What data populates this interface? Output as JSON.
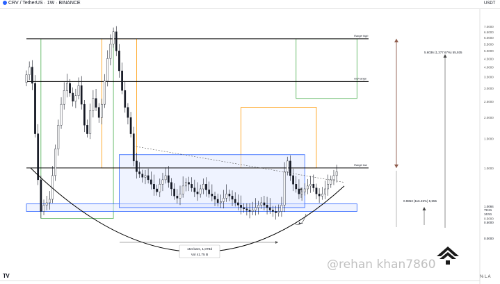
{
  "header": {
    "symbol_text": "CRV / TetherUS · 1W · BINANCE",
    "currency": "USDT"
  },
  "footer": {
    "tv_logo": "TV",
    "axis_controls": "%  L  A",
    "watermark": "@rehan khan7860"
  },
  "colors": {
    "candle": "#131722",
    "range_box_border": "#2962ff",
    "range_box_fill": "#dbe4ff",
    "green_box": "#4caf50",
    "orange_box": "#ff9800",
    "level_line": "#000000",
    "arrow_brown": "#8d5a4a"
  },
  "chart_data": {
    "type": "candlestick",
    "y_scale": "log",
    "ylim": [
      0.3,
      8.0
    ],
    "y_ticks": [
      0.5,
      1.0,
      1.5,
      2.0,
      2.5,
      3.0,
      3.5,
      4.0,
      4.5,
      5.0,
      5.5,
      6.0,
      6.5,
      7.0
    ],
    "levels": [
      {
        "name": "Range high",
        "value": 5.9
      },
      {
        "name": "mid-range",
        "value": 3.28
      },
      {
        "name": "Range low",
        "value": 1.0
      }
    ],
    "price_labels": [
      "1.0084",
      "79:21",
      "16:51",
      "0.5000",
      "0.0000"
    ],
    "boxes": [
      {
        "color": "green",
        "start_week": 5,
        "end_week": 30,
        "y_range": [
          0.5,
          5.9
        ]
      },
      {
        "color": "orange",
        "start_week": 26,
        "end_week": 38,
        "y_range": [
          1.0,
          5.9
        ]
      },
      {
        "color": "green",
        "start_week": 93,
        "end_week": 114,
        "y_range": [
          2.6,
          5.9
        ]
      },
      {
        "color": "orange",
        "start_week": 74,
        "end_week": 100,
        "y_range": [
          1.0,
          2.3
        ]
      },
      {
        "color": "blue",
        "start_week": 0,
        "end_week": 114,
        "y_range": [
          0.55,
          0.61
        ]
      },
      {
        "color": "blue",
        "start_week": 32,
        "end_week": 96,
        "y_range": [
          0.58,
          1.2
        ]
      }
    ],
    "measurements": [
      {
        "text": "5.6036 (1,377.67%) 55,935",
        "direction": "up"
      },
      {
        "text": "0.9853 (116.45%) 5,555",
        "direction": "up"
      },
      {
        "text": "154 bars, 1,078d",
        "direction": "right"
      },
      {
        "text": "Vol 41.75 B",
        "direction": "right"
      }
    ],
    "close_prices": [
      3.6,
      4.0,
      3.2,
      1.6,
      0.85,
      0.55,
      0.6,
      0.62,
      0.65,
      0.9,
      1.3,
      1.8,
      2.4,
      2.9,
      3.2,
      2.8,
      2.5,
      2.7,
      3.1,
      2.4,
      1.8,
      1.6,
      2.2,
      2.6,
      2.3,
      2.0,
      2.4,
      3.3,
      4.5,
      5.5,
      6.5,
      5.0,
      3.8,
      2.9,
      2.3,
      2.0,
      1.6,
      1.1,
      0.95,
      0.92,
      0.88,
      0.9,
      0.85,
      0.8,
      0.75,
      0.72,
      0.8,
      0.85,
      0.9,
      0.82,
      0.75,
      0.68,
      0.66,
      0.7,
      0.78,
      0.82,
      0.8,
      0.76,
      0.72,
      0.7,
      0.75,
      0.8,
      0.74,
      0.7,
      0.68,
      0.65,
      0.62,
      0.63,
      0.66,
      0.7,
      0.68,
      0.65,
      0.62,
      0.6,
      0.58,
      0.57,
      0.56,
      0.55,
      0.56,
      0.58,
      0.6,
      0.62,
      0.6,
      0.58,
      0.56,
      0.55,
      0.54,
      0.55,
      0.6,
      0.95,
      1.1,
      0.9,
      0.8,
      0.75,
      0.7,
      0.72,
      0.75,
      0.78,
      0.8,
      0.76,
      0.7,
      0.68,
      0.7,
      0.75,
      0.8,
      0.85,
      0.9,
      0.95
    ],
    "annotations": [
      "Range high",
      "mid-range",
      "Range low"
    ]
  }
}
